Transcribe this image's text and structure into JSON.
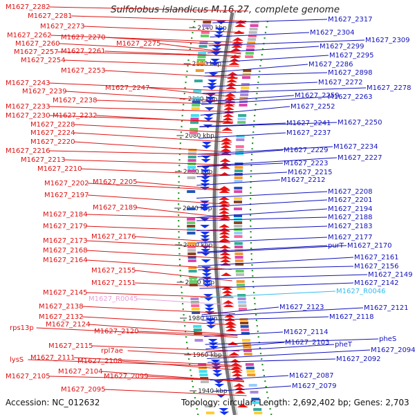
{
  "title": "Sulfolobus islandicus M.16.27, complete genome",
  "footer": {
    "accession": "Accession: NC_012632",
    "summary": "Topology: circular; Length: 2,692,402 bp; Genes: 2,703"
  },
  "colors": {
    "left_label": "#dd1111",
    "right_label": "#1111bb",
    "rna_left": "#e8a0d8",
    "rna_right": "#33bbee",
    "backbone": "#777777",
    "tick": "#2e9a2e",
    "forward_arrow": "#ee1111",
    "reverse_arrow": "#1133ee"
  },
  "scale_labels": [
    {
      "text": "2140 kbp"
    },
    {
      "text": "2120 kbp"
    },
    {
      "text": "2100 kbp"
    },
    {
      "text": "2080 kbp"
    },
    {
      "text": "2060 kbp"
    },
    {
      "text": "2040 kbp"
    },
    {
      "text": "2020 kbp"
    },
    {
      "text": "2000 kbp"
    },
    {
      "text": "1980 kbp"
    },
    {
      "text": "1960 kbp"
    },
    {
      "text": "1940 kbp"
    }
  ],
  "left_labels": [
    "M1627_2282",
    "M1627_2281",
    "M1627_2273",
    "M1627_2262",
    "M1627_2270",
    "M1627_2260",
    "M1627_2275",
    "M1627_2257",
    "M1627_2261",
    "M1627_2254",
    "M1627_2253",
    "M1627_2243",
    "M1627_2247",
    "M1627_2239",
    "M1627_2238",
    "M1627_2233",
    "M1627_2230",
    "M1627_2232",
    "M1627_2228",
    "M1627_2224",
    "M1627_2220",
    "M1627_2216",
    "M1627_2213",
    "M1627_2210",
    "M1627_2202",
    "M1627_2205",
    "M1627_2197",
    "M1627_2189",
    "M1627_2184",
    "M1627_2179",
    "M1627_2176",
    "M1627_2173",
    "M1627_2168",
    "M1627_2164",
    "M1627_2155",
    "M1627_2151",
    "M1627_2145",
    "M1627_R0045",
    "M1627_2138",
    "M1627_2132",
    "rps13p",
    "M1627_2124",
    "M1627_2120",
    "M1627_2115",
    "rpl7ae",
    "lysS",
    "M1627_2111",
    "M1627_2108",
    "M1627_2104",
    "M1627_2105",
    "M1627_2099",
    "M1627_2095"
  ],
  "right_labels": [
    "M1627_2317",
    "M1627_2304",
    "M1627_2309",
    "M1627_2299",
    "M1627_2295",
    "M1627_2286",
    "M1627_2898",
    "M1627_2272",
    "M1627_2278",
    "M1627_2259",
    "M1627_2263",
    "M1627_2252",
    "M1627_2241",
    "M1627_2250",
    "M1627_2237",
    "M1627_2229",
    "M1627_2234",
    "M1627_2227",
    "M1627_2223",
    "M1627_2215",
    "M1627_2212",
    "M1627_2208",
    "M1627_2201",
    "M1627_2194",
    "M1627_2188",
    "M1627_2183",
    "M1627_2177",
    "purT",
    "M1627_2170",
    "M1627_2161",
    "M1627_2156",
    "M1627_2149",
    "M1627_2142",
    "M1627_R0046",
    "M1627_2123",
    "M1627_2121",
    "M1627_2118",
    "M1627_2114",
    "pheS",
    "M1627_2103",
    "pheT",
    "M1627_2094",
    "M1627_2092",
    "M1627_2087",
    "M1627_2079"
  ]
}
